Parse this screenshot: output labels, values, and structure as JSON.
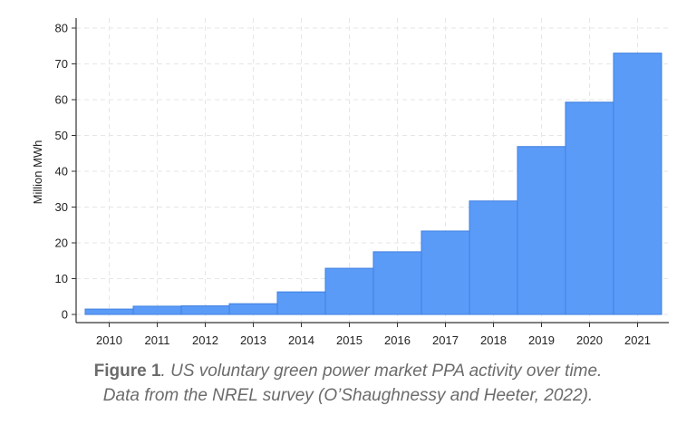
{
  "chart_data": {
    "type": "bar",
    "categories": [
      "2010",
      "2011",
      "2012",
      "2013",
      "2014",
      "2015",
      "2016",
      "2017",
      "2018",
      "2019",
      "2020",
      "2021"
    ],
    "values": [
      1.5,
      2.3,
      2.4,
      3.0,
      6.3,
      12.9,
      17.5,
      23.3,
      31.7,
      46.9,
      59.3,
      73.0
    ],
    "title": "",
    "xlabel": "",
    "ylabel": "Million MWh",
    "ylim": [
      0,
      82
    ],
    "yticks": [
      0,
      10,
      20,
      30,
      40,
      50,
      60,
      70,
      80
    ],
    "grid": true,
    "bar_color": "#5b9bf8",
    "bar_edge_color": "#3f7fe0"
  },
  "caption": {
    "label": "Figure 1",
    "line1": ". US voluntary green power market PPA activity over time.",
    "line2": "Data from the NREL survey (O’Shaughnessy and Heeter, 2022)."
  }
}
